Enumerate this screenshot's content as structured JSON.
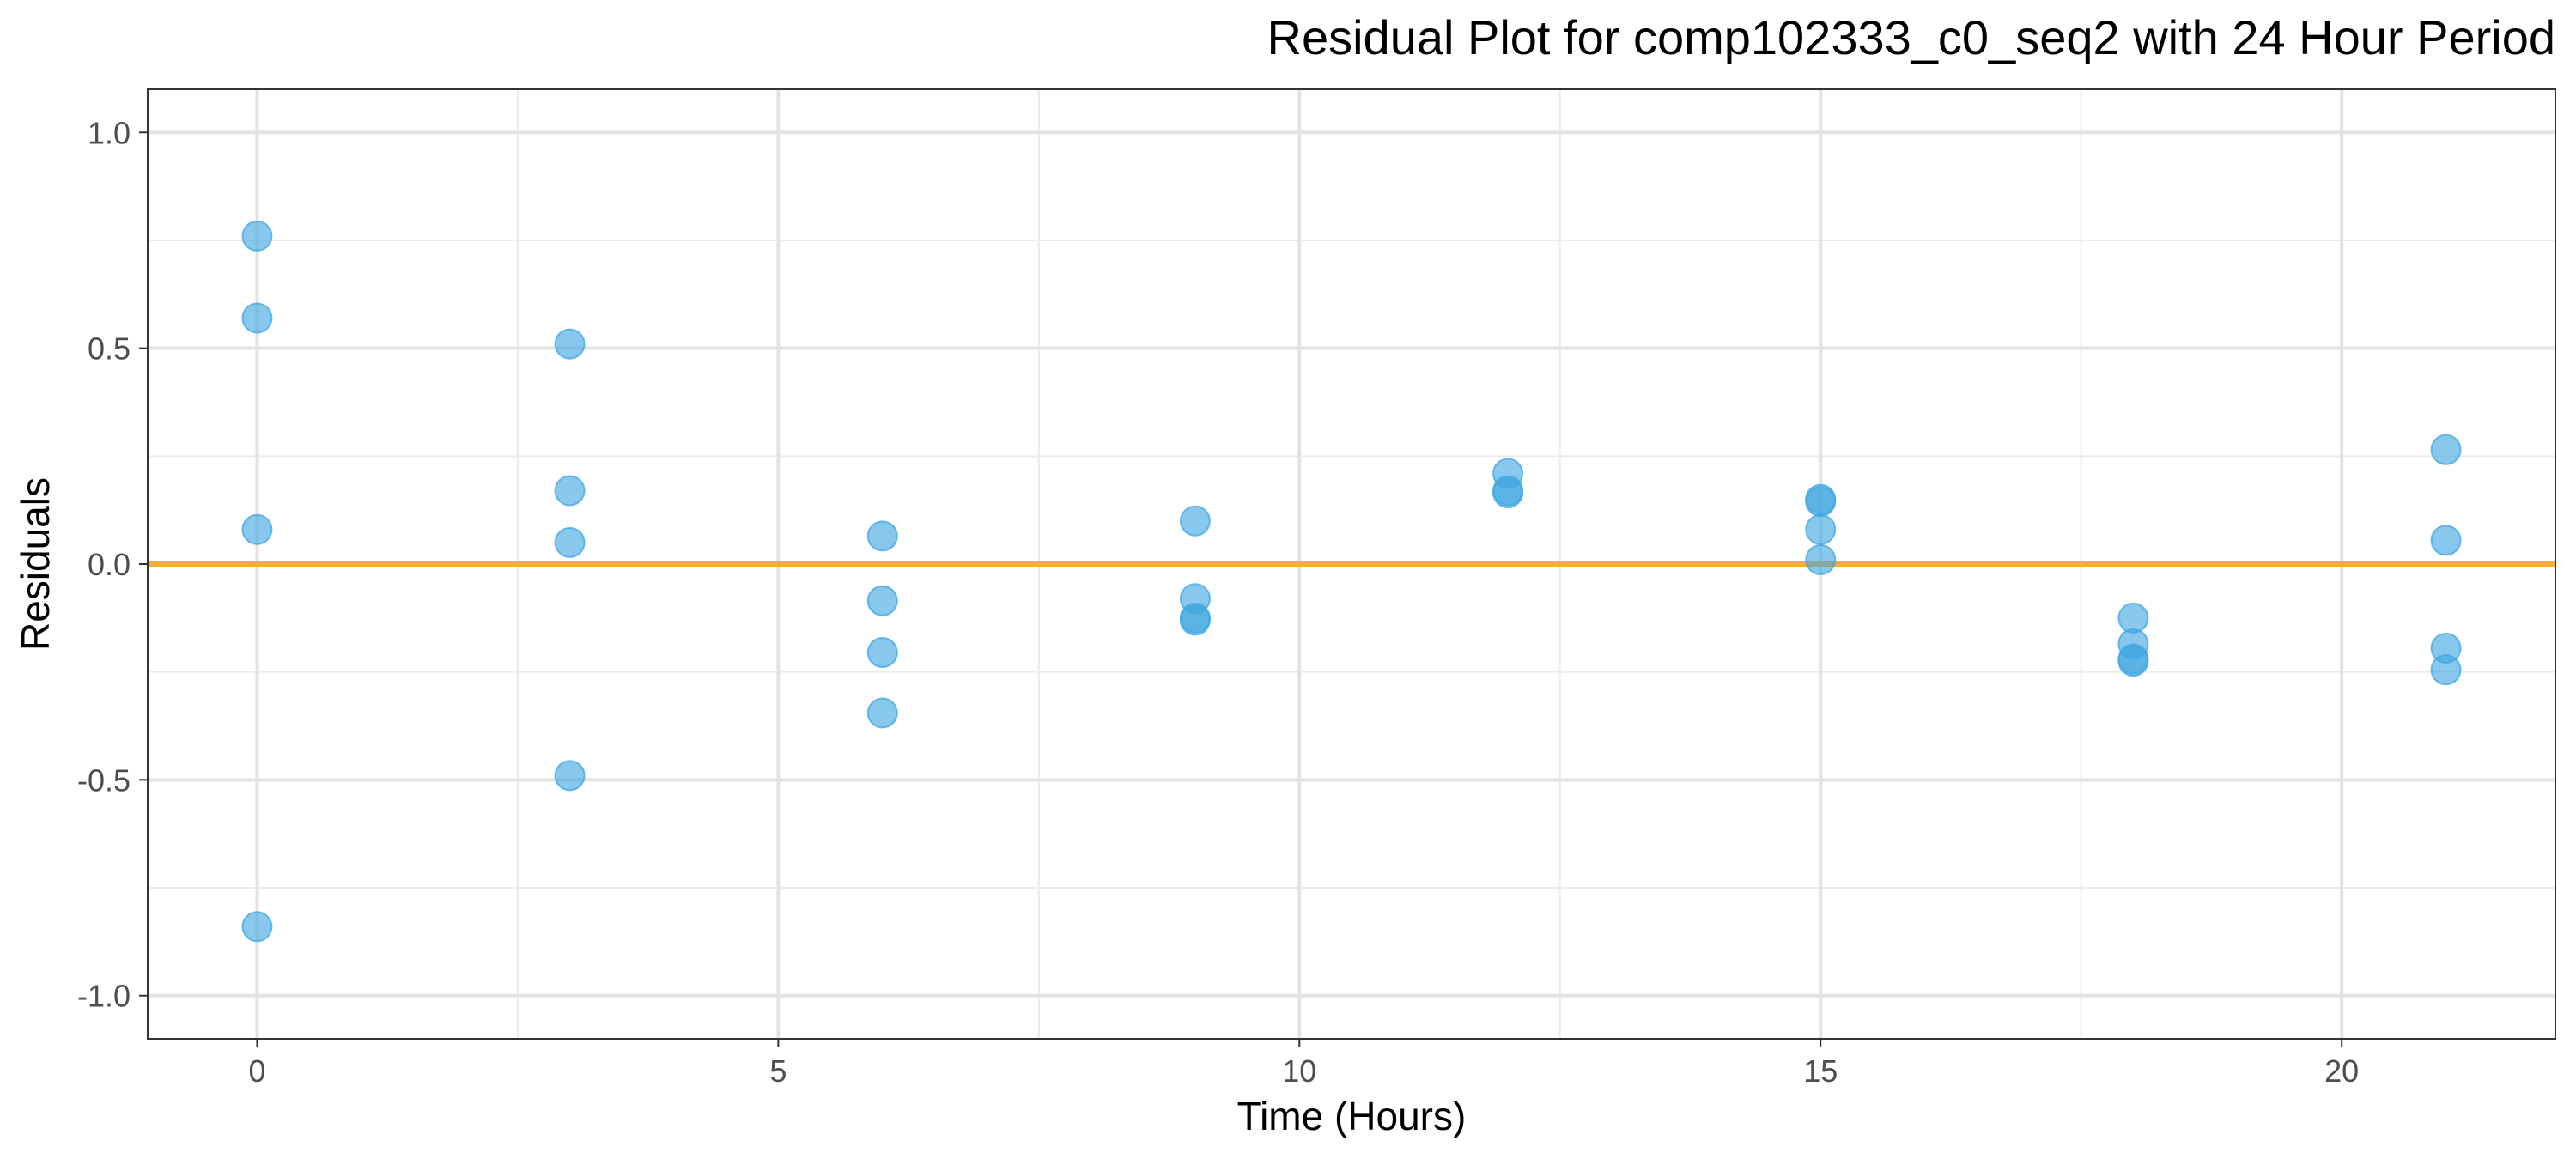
{
  "chart_data": {
    "type": "scatter",
    "title": "Residual Plot for comp102333_c0_seq2 with 24 Hour Period",
    "xlabel": "Time (Hours)",
    "ylabel": "Residuals",
    "xlim": [
      -1.05,
      22.05
    ],
    "ylim": [
      -1.1,
      1.1
    ],
    "x_ticks": [
      0,
      5,
      10,
      15,
      20
    ],
    "x_tick_labels": [
      "0",
      "5",
      "10",
      "15",
      "20"
    ],
    "y_ticks": [
      -1.0,
      -0.5,
      0.0,
      0.5,
      1.0
    ],
    "y_tick_labels": [
      "-1.0",
      "-0.5",
      "0.0",
      "0.5",
      "1.0"
    ],
    "x_minor_ticks": [
      2.5,
      7.5,
      12.5,
      17.5
    ],
    "y_minor_ticks": [
      -0.75,
      -0.25,
      0.25,
      0.75
    ],
    "grid": true,
    "reference_line": {
      "y": 0.0,
      "color": "#f8ac3a"
    },
    "point_color": "#3fa7e1",
    "points": [
      {
        "x": 0,
        "y": 0.76
      },
      {
        "x": 0,
        "y": 0.57
      },
      {
        "x": 0,
        "y": 0.08
      },
      {
        "x": 0,
        "y": -0.84
      },
      {
        "x": 3,
        "y": 0.51
      },
      {
        "x": 3,
        "y": 0.17
      },
      {
        "x": 3,
        "y": 0.05
      },
      {
        "x": 3,
        "y": -0.49
      },
      {
        "x": 6,
        "y": 0.065
      },
      {
        "x": 6,
        "y": -0.085
      },
      {
        "x": 6,
        "y": -0.205
      },
      {
        "x": 6,
        "y": -0.345
      },
      {
        "x": 9,
        "y": 0.1
      },
      {
        "x": 9,
        "y": -0.08
      },
      {
        "x": 9,
        "y": -0.125
      },
      {
        "x": 9,
        "y": -0.13
      },
      {
        "x": 12,
        "y": 0.21
      },
      {
        "x": 12,
        "y": 0.17
      },
      {
        "x": 12,
        "y": 0.165
      },
      {
        "x": 15,
        "y": 0.15
      },
      {
        "x": 15,
        "y": 0.145
      },
      {
        "x": 15,
        "y": 0.08
      },
      {
        "x": 15,
        "y": 0.01
      },
      {
        "x": 18,
        "y": -0.125
      },
      {
        "x": 18,
        "y": -0.185
      },
      {
        "x": 18,
        "y": -0.22
      },
      {
        "x": 18,
        "y": -0.225
      },
      {
        "x": 21,
        "y": 0.265
      },
      {
        "x": 21,
        "y": 0.055
      },
      {
        "x": 21,
        "y": -0.195
      },
      {
        "x": 21,
        "y": -0.245
      }
    ]
  }
}
